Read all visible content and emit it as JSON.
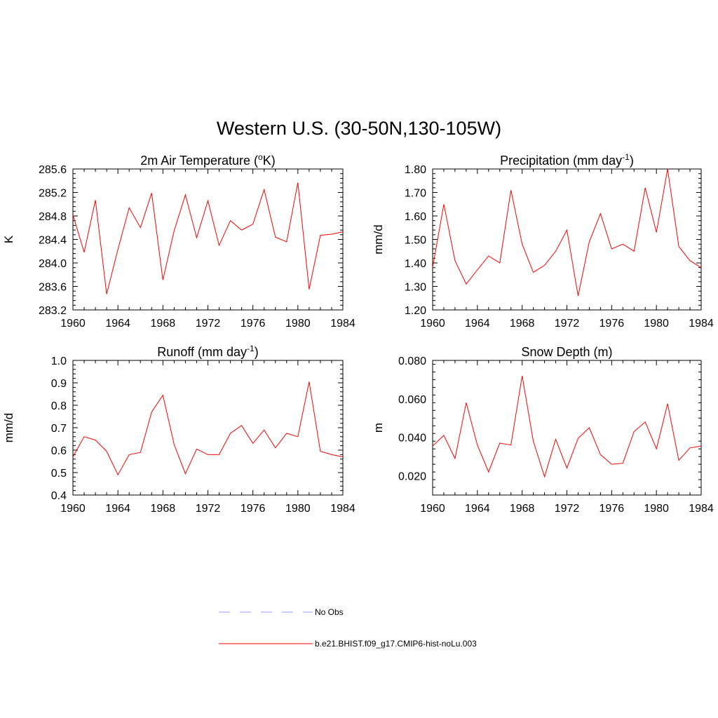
{
  "title": "Western U.S. (30-50N,130-105W)",
  "colors": {
    "model": "#ff0000",
    "obs": "#9999ff",
    "axis": "#000000"
  },
  "legend": [
    {
      "label": "No Obs",
      "style": "dashed",
      "color": "#9999ff"
    },
    {
      "label": "b.e21.BHIST.f09_g17.CMIP6-hist-noLu.003",
      "style": "solid",
      "color": "#ff0000"
    }
  ],
  "chart_data": [
    {
      "type": "line",
      "title": "2m Air Temperature (",
      "title_sup": "o",
      "title_rest": "K)",
      "ylabel": "K",
      "ylim": [
        283.2,
        285.6
      ],
      "yticks": [
        283.2,
        283.6,
        284.0,
        284.4,
        284.8,
        285.2,
        285.6
      ],
      "ytick_labels": [
        "283.2",
        "283.6",
        "284.0",
        "284.4",
        "284.8",
        "285.2",
        "285.6"
      ],
      "xlim": [
        1960,
        1984
      ],
      "xticks": [
        1960,
        1964,
        1968,
        1972,
        1976,
        1980,
        1984
      ],
      "x": [
        1960,
        1961,
        1962,
        1963,
        1964,
        1965,
        1966,
        1967,
        1968,
        1969,
        1970,
        1971,
        1972,
        1973,
        1974,
        1975,
        1976,
        1977,
        1978,
        1979,
        1980,
        1981,
        1982,
        1983,
        1984
      ],
      "series": [
        {
          "name": "b.e21.BHIST.f09_g17.CMIP6-hist-noLu.003",
          "values": [
            284.82,
            284.18,
            285.07,
            283.47,
            284.23,
            284.94,
            284.6,
            285.19,
            283.71,
            284.55,
            285.16,
            284.43,
            285.06,
            284.3,
            284.72,
            284.56,
            284.66,
            285.25,
            284.44,
            284.36,
            285.37,
            283.55,
            284.47,
            284.49,
            284.53
          ]
        }
      ]
    },
    {
      "type": "line",
      "title": "Precipitation (mm day",
      "title_sup": "-1",
      "title_rest": ")",
      "ylabel": "mm/d",
      "ylim": [
        1.2,
        1.8
      ],
      "yticks": [
        1.2,
        1.3,
        1.4,
        1.5,
        1.6,
        1.7,
        1.8
      ],
      "ytick_labels": [
        "1.20",
        "1.30",
        "1.40",
        "1.50",
        "1.60",
        "1.70",
        "1.80"
      ],
      "xlim": [
        1960,
        1984
      ],
      "xticks": [
        1960,
        1964,
        1968,
        1972,
        1976,
        1980,
        1984
      ],
      "x": [
        1960,
        1961,
        1962,
        1963,
        1964,
        1965,
        1966,
        1967,
        1968,
        1969,
        1970,
        1971,
        1972,
        1973,
        1974,
        1975,
        1976,
        1977,
        1978,
        1979,
        1980,
        1981,
        1982,
        1983,
        1984
      ],
      "series": [
        {
          "name": "b.e21.BHIST.f09_g17.CMIP6-hist-noLu.003",
          "values": [
            1.38,
            1.65,
            1.41,
            1.31,
            1.37,
            1.43,
            1.4,
            1.71,
            1.48,
            1.36,
            1.39,
            1.45,
            1.54,
            1.26,
            1.49,
            1.61,
            1.46,
            1.48,
            1.45,
            1.72,
            1.53,
            1.8,
            1.47,
            1.41,
            1.38
          ]
        }
      ]
    },
    {
      "type": "line",
      "title": "Runoff (mm day",
      "title_sup": "-1",
      "title_rest": ")",
      "ylabel": "mm/d",
      "ylim": [
        0.4,
        1.0
      ],
      "yticks": [
        0.4,
        0.5,
        0.6,
        0.7,
        0.8,
        0.9,
        1.0
      ],
      "ytick_labels": [
        "0.4",
        "0.5",
        "0.6",
        "0.7",
        "0.8",
        "0.9",
        "1.0"
      ],
      "xlim": [
        1960,
        1984
      ],
      "xticks": [
        1960,
        1964,
        1968,
        1972,
        1976,
        1980,
        1984
      ],
      "x": [
        1960,
        1961,
        1962,
        1963,
        1964,
        1965,
        1966,
        1967,
        1968,
        1969,
        1970,
        1971,
        1972,
        1973,
        1974,
        1975,
        1976,
        1977,
        1978,
        1979,
        1980,
        1981,
        1982,
        1983,
        1984
      ],
      "series": [
        {
          "name": "b.e21.BHIST.f09_g17.CMIP6-hist-noLu.003",
          "values": [
            0.57,
            0.66,
            0.645,
            0.595,
            0.49,
            0.58,
            0.59,
            0.77,
            0.845,
            0.625,
            0.495,
            0.605,
            0.58,
            0.58,
            0.675,
            0.71,
            0.63,
            0.69,
            0.61,
            0.675,
            0.66,
            0.905,
            0.595,
            0.58,
            0.57
          ]
        }
      ]
    },
    {
      "type": "line",
      "title": "Snow Depth (m)",
      "title_sup": "",
      "title_rest": "",
      "ylabel": "m",
      "ylim": [
        0.01,
        0.08
      ],
      "yticks": [
        0.02,
        0.04,
        0.06,
        0.08
      ],
      "ytick_labels": [
        "0.020",
        "0.040",
        "0.060",
        "0.080"
      ],
      "xlim": [
        1960,
        1984
      ],
      "xticks": [
        1960,
        1964,
        1968,
        1972,
        1976,
        1980,
        1984
      ],
      "x": [
        1960,
        1961,
        1962,
        1963,
        1964,
        1965,
        1966,
        1967,
        1968,
        1969,
        1970,
        1971,
        1972,
        1973,
        1974,
        1975,
        1976,
        1977,
        1978,
        1979,
        1980,
        1981,
        1982,
        1983,
        1984
      ],
      "series": [
        {
          "name": "b.e21.BHIST.f09_g17.CMIP6-hist-noLu.003",
          "values": [
            0.0355,
            0.041,
            0.029,
            0.058,
            0.036,
            0.022,
            0.037,
            0.036,
            0.072,
            0.038,
            0.0195,
            0.039,
            0.024,
            0.0395,
            0.045,
            0.031,
            0.026,
            0.0265,
            0.043,
            0.048,
            0.034,
            0.0575,
            0.028,
            0.0345,
            0.0355
          ]
        }
      ]
    }
  ]
}
